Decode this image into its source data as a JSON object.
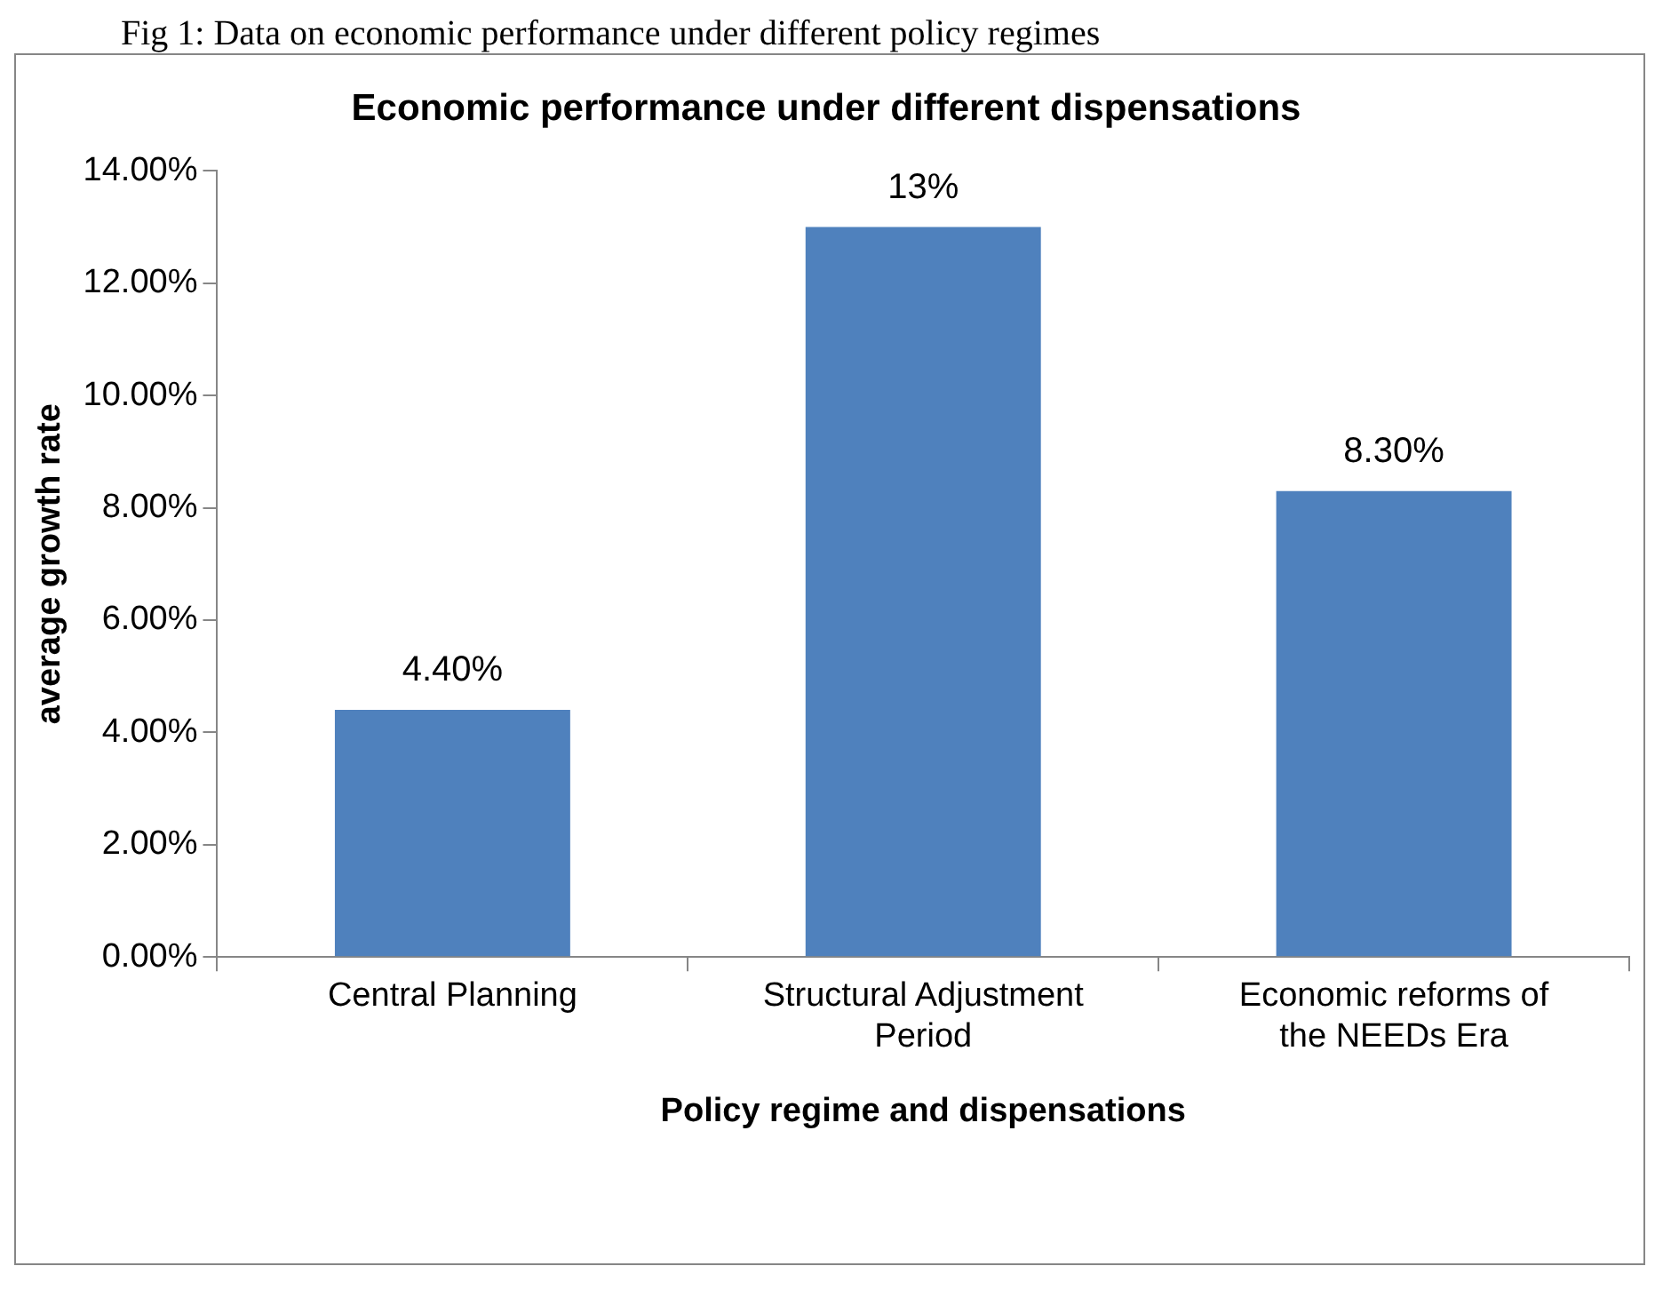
{
  "chart_data": {
    "type": "bar",
    "title": "Economic performance under different dispensations",
    "annotations": [
      "Fig 1: Data on economic performance under different policy regimes"
    ],
    "xlabel": "Policy regime and dispensations",
    "ylabel": "average growth rate",
    "categories": [
      "Central Planning",
      "Structural Adjustment Period",
      "Economic reforms of the NEEDs Era"
    ],
    "values": [
      4.4,
      13,
      8.3
    ],
    "value_labels": [
      "4.40%",
      "13%",
      "8.30%"
    ],
    "color": "#4f81bd",
    "ylim": [
      0,
      14
    ],
    "yticks": [
      {
        "value": 0,
        "label": "0.00%"
      },
      {
        "value": 2,
        "label": "2.00%"
      },
      {
        "value": 4,
        "label": "4.00%"
      },
      {
        "value": 6,
        "label": "6.00%"
      },
      {
        "value": 8,
        "label": "8.00%"
      },
      {
        "value": 10,
        "label": "10.00%"
      },
      {
        "value": 12,
        "label": "12.00%"
      },
      {
        "value": 14,
        "label": "14.00%"
      }
    ],
    "grid": false,
    "legend": false
  }
}
